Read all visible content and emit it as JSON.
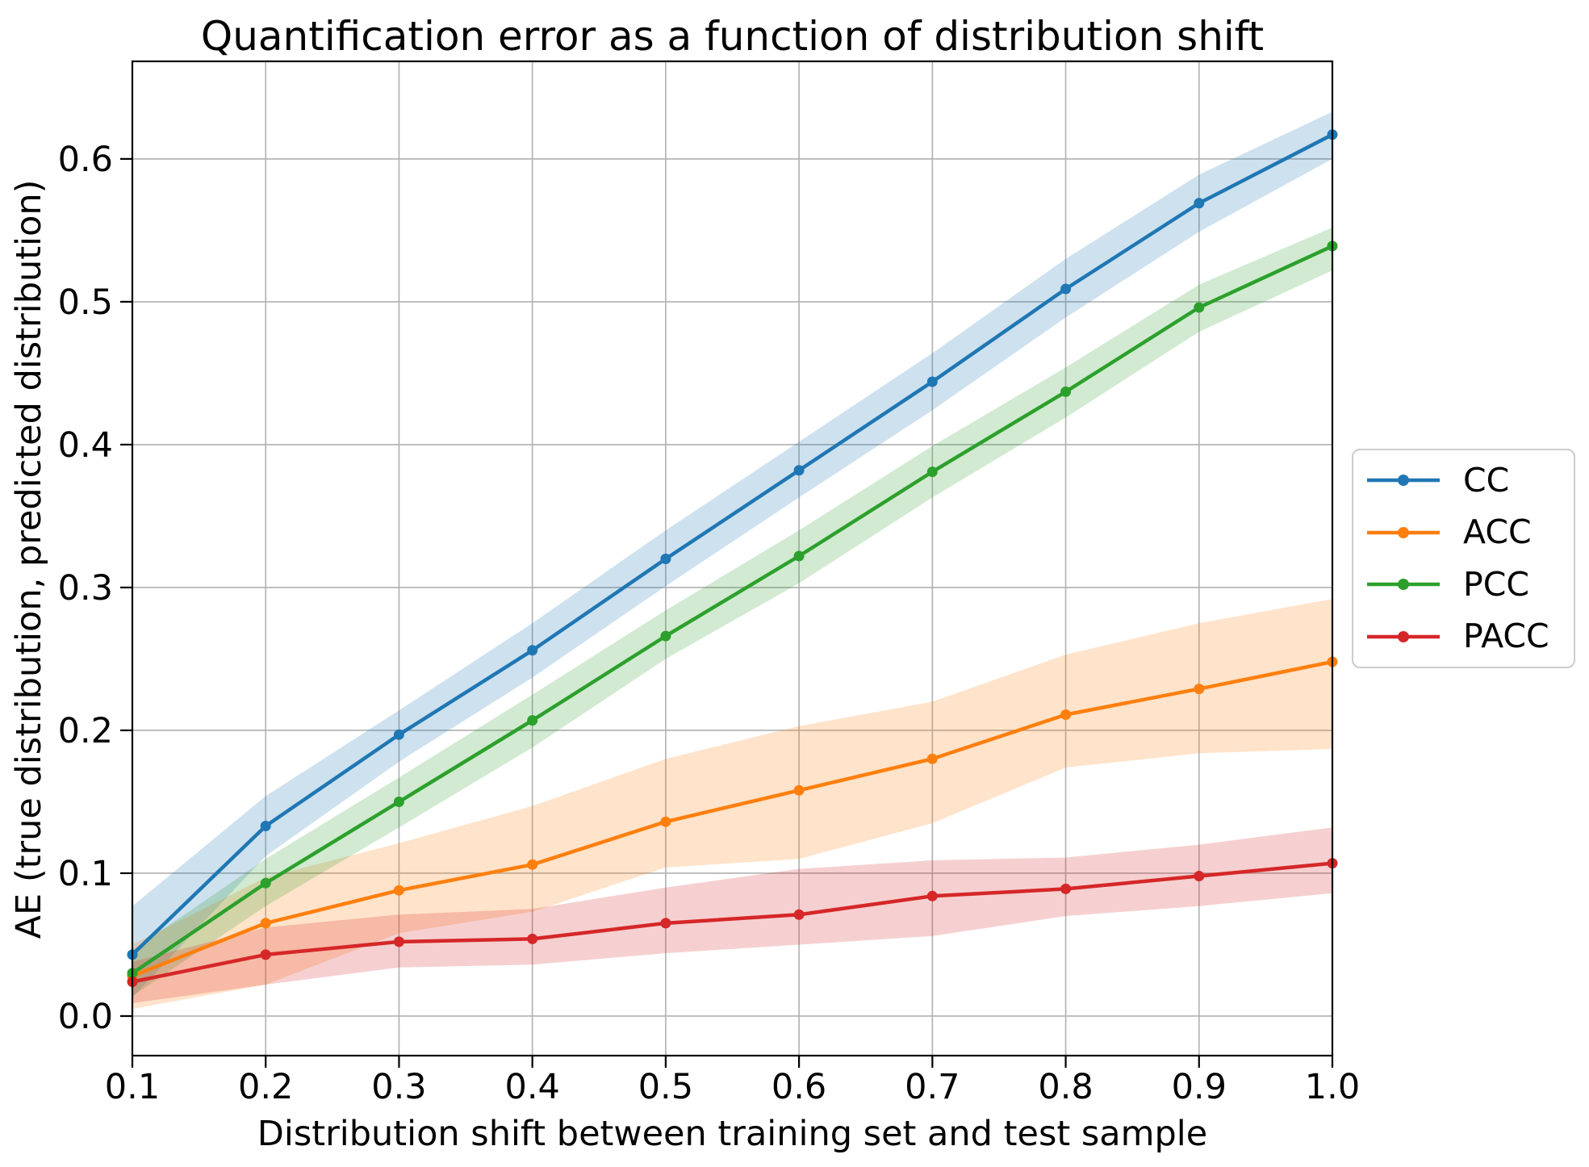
{
  "chart_data": {
    "type": "line",
    "title": "Quantification error as a function of distribution shift",
    "xlabel": "Distribution shift between training set and test sample",
    "ylabel": "AE (true distribution, predicted distribution)",
    "x": [
      0.1,
      0.2,
      0.3,
      0.4,
      0.5,
      0.6,
      0.7,
      0.8,
      0.9,
      1.0
    ],
    "x_tick_labels": [
      "0.1",
      "0.2",
      "0.3",
      "0.4",
      "0.5",
      "0.6",
      "0.7",
      "0.8",
      "0.9",
      "1.0"
    ],
    "y_ticks": [
      0.0,
      0.1,
      0.2,
      0.3,
      0.4,
      0.5,
      0.6
    ],
    "y_tick_labels": [
      "0.0",
      "0.1",
      "0.2",
      "0.3",
      "0.4",
      "0.5",
      "0.6"
    ],
    "xlim": [
      0.1,
      1.0
    ],
    "ylim": [
      -0.0277,
      0.6683
    ],
    "grid": true,
    "grid_color": "#b0b0b0",
    "legend_position": "center-right outside axes",
    "band_opacity": 0.22,
    "marker": "dot",
    "series": [
      {
        "name": "CC",
        "color": "#1f77b4",
        "values": [
          0.043,
          0.133,
          0.197,
          0.256,
          0.32,
          0.382,
          0.444,
          0.509,
          0.569,
          0.617
        ],
        "band_lo": [
          0.013,
          0.112,
          0.178,
          0.237,
          0.301,
          0.363,
          0.424,
          0.489,
          0.549,
          0.6
        ],
        "band_hi": [
          0.077,
          0.154,
          0.214,
          0.275,
          0.34,
          0.402,
          0.464,
          0.53,
          0.589,
          0.633
        ]
      },
      {
        "name": "ACC",
        "color": "#ff7f0e",
        "values": [
          0.028,
          0.065,
          0.088,
          0.106,
          0.136,
          0.158,
          0.18,
          0.211,
          0.229,
          0.248
        ],
        "band_lo": [
          0.005,
          0.022,
          0.058,
          0.073,
          0.104,
          0.11,
          0.135,
          0.174,
          0.184,
          0.187
        ],
        "band_hi": [
          0.05,
          0.097,
          0.121,
          0.147,
          0.18,
          0.203,
          0.22,
          0.253,
          0.275,
          0.292
        ]
      },
      {
        "name": "PCC",
        "color": "#2ca02c",
        "values": [
          0.03,
          0.093,
          0.15,
          0.207,
          0.266,
          0.322,
          0.381,
          0.437,
          0.496,
          0.539
        ],
        "band_lo": [
          0.014,
          0.077,
          0.132,
          0.188,
          0.25,
          0.303,
          0.363,
          0.419,
          0.479,
          0.522
        ],
        "band_hi": [
          0.046,
          0.11,
          0.167,
          0.225,
          0.284,
          0.34,
          0.399,
          0.454,
          0.512,
          0.552
        ]
      },
      {
        "name": "PACC",
        "color": "#d62728",
        "values": [
          0.024,
          0.043,
          0.052,
          0.054,
          0.065,
          0.071,
          0.084,
          0.089,
          0.098,
          0.107
        ],
        "band_lo": [
          0.009,
          0.022,
          0.034,
          0.036,
          0.044,
          0.05,
          0.056,
          0.07,
          0.077,
          0.086
        ],
        "band_hi": [
          0.038,
          0.062,
          0.071,
          0.075,
          0.09,
          0.103,
          0.109,
          0.111,
          0.12,
          0.132
        ]
      }
    ]
  }
}
